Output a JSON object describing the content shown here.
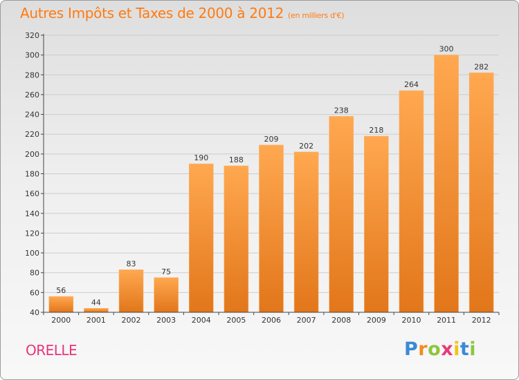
{
  "chart_data": {
    "type": "bar",
    "title": "Autres Impôts et Taxes de 2000 à 2012",
    "subtitle": "(en milliers d'€)",
    "categories": [
      "2000",
      "2001",
      "2002",
      "2003",
      "2004",
      "2005",
      "2006",
      "2007",
      "2008",
      "2009",
      "2010",
      "2011",
      "2012"
    ],
    "values": [
      56,
      44,
      83,
      75,
      190,
      188,
      209,
      202,
      238,
      218,
      264,
      300,
      282
    ],
    "ylim": [
      40,
      320
    ],
    "yticks": [
      40,
      60,
      80,
      100,
      120,
      140,
      160,
      180,
      200,
      220,
      240,
      260,
      280,
      300,
      320
    ],
    "grid": true,
    "xlabel": "",
    "ylabel": "",
    "colors": {
      "bar_light": "#ffa850",
      "bar_dark": "#e2761a",
      "axis": "#444444",
      "grid": "#cccccc"
    }
  },
  "commune": "ORELLE",
  "logo": {
    "letters": [
      "P",
      "r",
      "o",
      "x",
      "i",
      "t",
      "i"
    ],
    "colors": [
      "#3a8ad6",
      "#f28c1c",
      "#8cc63f",
      "#e83a7a",
      "#f2c31c",
      "#3a8ad6",
      "#8cc63f"
    ]
  }
}
